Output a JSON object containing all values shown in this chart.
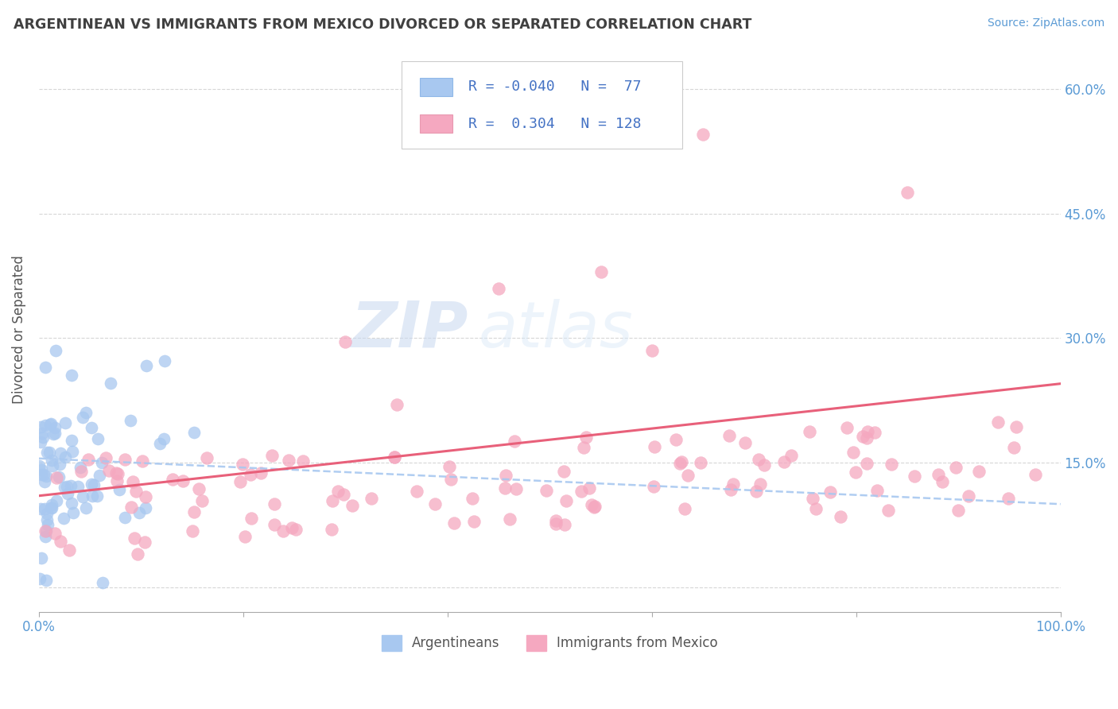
{
  "title": "ARGENTINEAN VS IMMIGRANTS FROM MEXICO DIVORCED OR SEPARATED CORRELATION CHART",
  "source_text": "Source: ZipAtlas.com",
  "ylabel": "Divorced or Separated",
  "legend_label1": "Argentineans",
  "legend_label2": "Immigrants from Mexico",
  "color_blue": "#A8C8F0",
  "color_pink": "#F5A8C0",
  "watermark_zip": "ZIP",
  "watermark_atlas": "atlas",
  "xlim": [
    0.0,
    100.0
  ],
  "ylim": [
    -0.03,
    0.65
  ],
  "blue_R": -0.04,
  "blue_N": 77,
  "pink_R": 0.304,
  "pink_N": 128,
  "legend_text_color": "#4472C4",
  "title_color": "#404040",
  "axis_color": "#5B9BD5",
  "grid_color": "#CCCCCC",
  "blue_trend_start": 0.155,
  "blue_trend_end": 0.1,
  "pink_trend_start": 0.11,
  "pink_trend_end": 0.245
}
